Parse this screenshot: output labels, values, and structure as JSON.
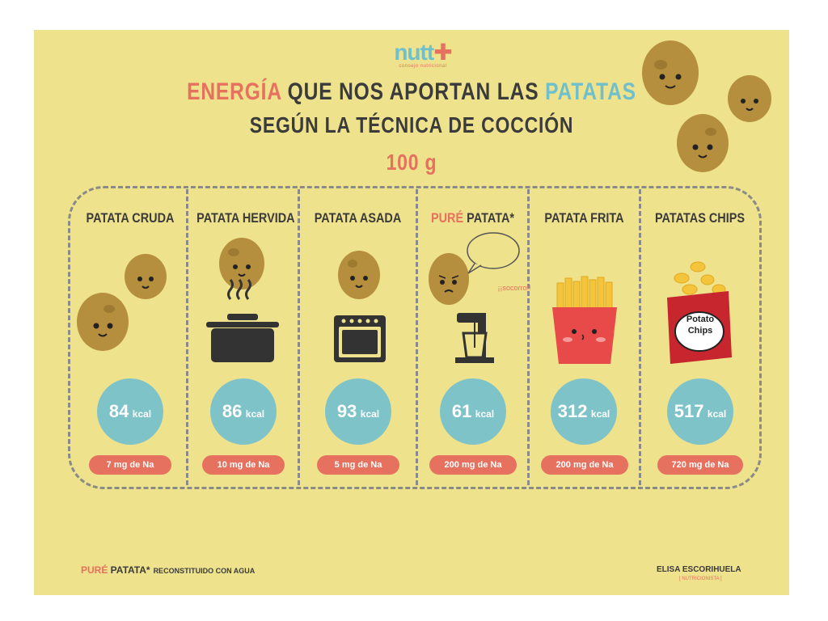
{
  "logo": {
    "word": "nutt",
    "subtitle": "consejo nutricional"
  },
  "title": {
    "line1_a": "ENERGÍA",
    "line1_b": " QUE NOS APORTAN LAS ",
    "line1_c": "PATATAS",
    "line2": "SEGÚN LA TÉCNICA DE COCCIÓN",
    "line3": "100 g"
  },
  "columns": [
    {
      "title": "PATATA CRUDA",
      "kcal": "84",
      "unit": "kcal",
      "sodium": "7 mg de Na"
    },
    {
      "title": "PATATA HERVIDA",
      "kcal": "86",
      "unit": "kcal",
      "sodium": "10 mg de Na"
    },
    {
      "title": "PATATA ASADA",
      "kcal": "93",
      "unit": "kcal",
      "sodium": "5 mg de Na"
    },
    {
      "title_a": "PURÉ",
      "title_b": " PATATA*",
      "kcal": "61",
      "unit": "kcal",
      "sodium": "200 mg de Na",
      "bubble": "¡¡socorro!!"
    },
    {
      "title": "PATATA FRITA",
      "kcal": "312",
      "unit": "kcal",
      "sodium": "200 mg de Na"
    },
    {
      "title": "PATATAS CHIPS",
      "kcal": "517",
      "unit": "kcal",
      "sodium": "720 mg de Na",
      "bag_text_1": "Potato",
      "bag_text_2": "Chips"
    }
  ],
  "footnote": {
    "a": "PURÉ",
    "b": " PATATA*",
    "c": "RECONSTITUIDO CON AGUA"
  },
  "credit": {
    "name": "ELISA ESCORIHUELA",
    "role": "[ NUTRICIONISTA ]"
  },
  "colors": {
    "background": "#efe28c",
    "accent_red": "#e5715e",
    "accent_blue": "#7ec3c8",
    "text": "#3b3b3b",
    "potato": "#b58f3e"
  }
}
